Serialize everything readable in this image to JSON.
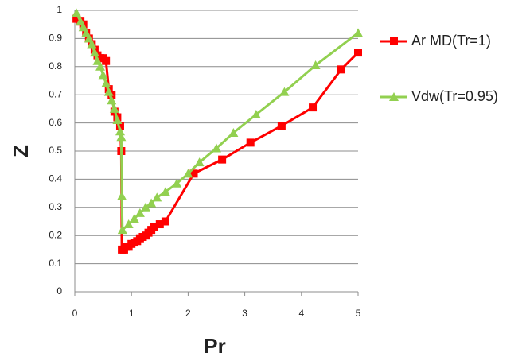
{
  "chart_data": {
    "type": "line",
    "x_label": "Pr",
    "y_label": "Z",
    "xlim": [
      0,
      5
    ],
    "ylim": [
      0,
      1
    ],
    "xticks": [
      0,
      1,
      2,
      3,
      4,
      5
    ],
    "yticks": [
      0,
      0.1,
      0.2,
      0.3,
      0.4,
      0.5,
      0.6,
      0.7,
      0.8,
      0.9,
      1
    ],
    "grid": true,
    "legend": "right",
    "series": [
      {
        "name": "Ar MD(Tr=1)",
        "color": "#ff0000",
        "marker": "square",
        "x": [
          0.03,
          0.1,
          0.15,
          0.2,
          0.25,
          0.3,
          0.35,
          0.4,
          0.45,
          0.5,
          0.55,
          0.6,
          0.65,
          0.7,
          0.75,
          0.8,
          0.82,
          0.83,
          0.87,
          0.9,
          0.95,
          1.0,
          1.05,
          1.1,
          1.15,
          1.2,
          1.25,
          1.3,
          1.35,
          1.4,
          1.5,
          1.6,
          2.1,
          2.6,
          3.1,
          3.65,
          4.2,
          4.7,
          5.0
        ],
        "values": [
          0.97,
          0.96,
          0.95,
          0.92,
          0.9,
          0.88,
          0.86,
          0.84,
          0.83,
          0.83,
          0.82,
          0.72,
          0.7,
          0.64,
          0.62,
          0.59,
          0.5,
          0.15,
          0.15,
          0.16,
          0.16,
          0.17,
          0.175,
          0.18,
          0.19,
          0.195,
          0.2,
          0.21,
          0.22,
          0.23,
          0.24,
          0.25,
          0.42,
          0.47,
          0.53,
          0.59,
          0.655,
          0.79,
          0.85
        ]
      },
      {
        "name": "Vdw(Tr=0.95)",
        "color": "#92d050",
        "marker": "triangle",
        "x": [
          0.03,
          0.1,
          0.15,
          0.2,
          0.25,
          0.3,
          0.35,
          0.4,
          0.45,
          0.5,
          0.55,
          0.6,
          0.65,
          0.7,
          0.75,
          0.8,
          0.82,
          0.83,
          0.84,
          0.95,
          1.05,
          1.15,
          1.25,
          1.35,
          1.45,
          1.6,
          1.8,
          2.0,
          2.2,
          2.5,
          2.8,
          3.2,
          3.7,
          4.25,
          5.0
        ],
        "values": [
          0.99,
          0.96,
          0.94,
          0.92,
          0.9,
          0.88,
          0.85,
          0.82,
          0.8,
          0.77,
          0.74,
          0.71,
          0.68,
          0.65,
          0.61,
          0.57,
          0.55,
          0.34,
          0.22,
          0.24,
          0.26,
          0.28,
          0.3,
          0.315,
          0.335,
          0.355,
          0.385,
          0.42,
          0.46,
          0.51,
          0.565,
          0.63,
          0.71,
          0.805,
          0.92
        ]
      }
    ]
  }
}
